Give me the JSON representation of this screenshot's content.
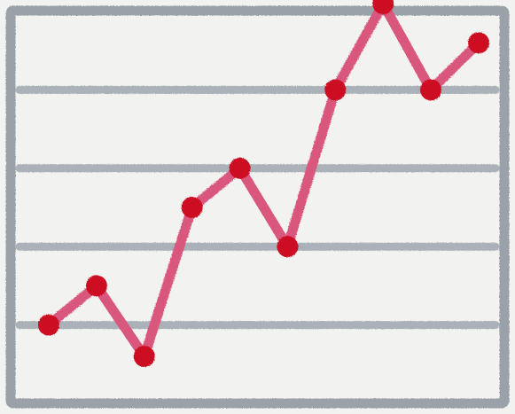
{
  "chart_data": {
    "type": "line",
    "x": [
      1,
      2,
      3,
      4,
      5,
      6,
      7,
      8,
      9,
      10
    ],
    "series": [
      {
        "values": [
          1.0,
          1.5,
          0.6,
          2.5,
          3.0,
          2.0,
          4.0,
          5.1,
          4.0,
          4.6
        ]
      }
    ],
    "xlim": [
      1,
      10
    ],
    "ylim": [
      0,
      5
    ],
    "grid": true,
    "gridlines_y": [
      1,
      2,
      3,
      4
    ],
    "colors": {
      "line": "#d9567c",
      "marker": "#cc1122",
      "frame": "#9aa1a8",
      "grid": "#aab1b8",
      "background": "#f2f2f1"
    }
  }
}
